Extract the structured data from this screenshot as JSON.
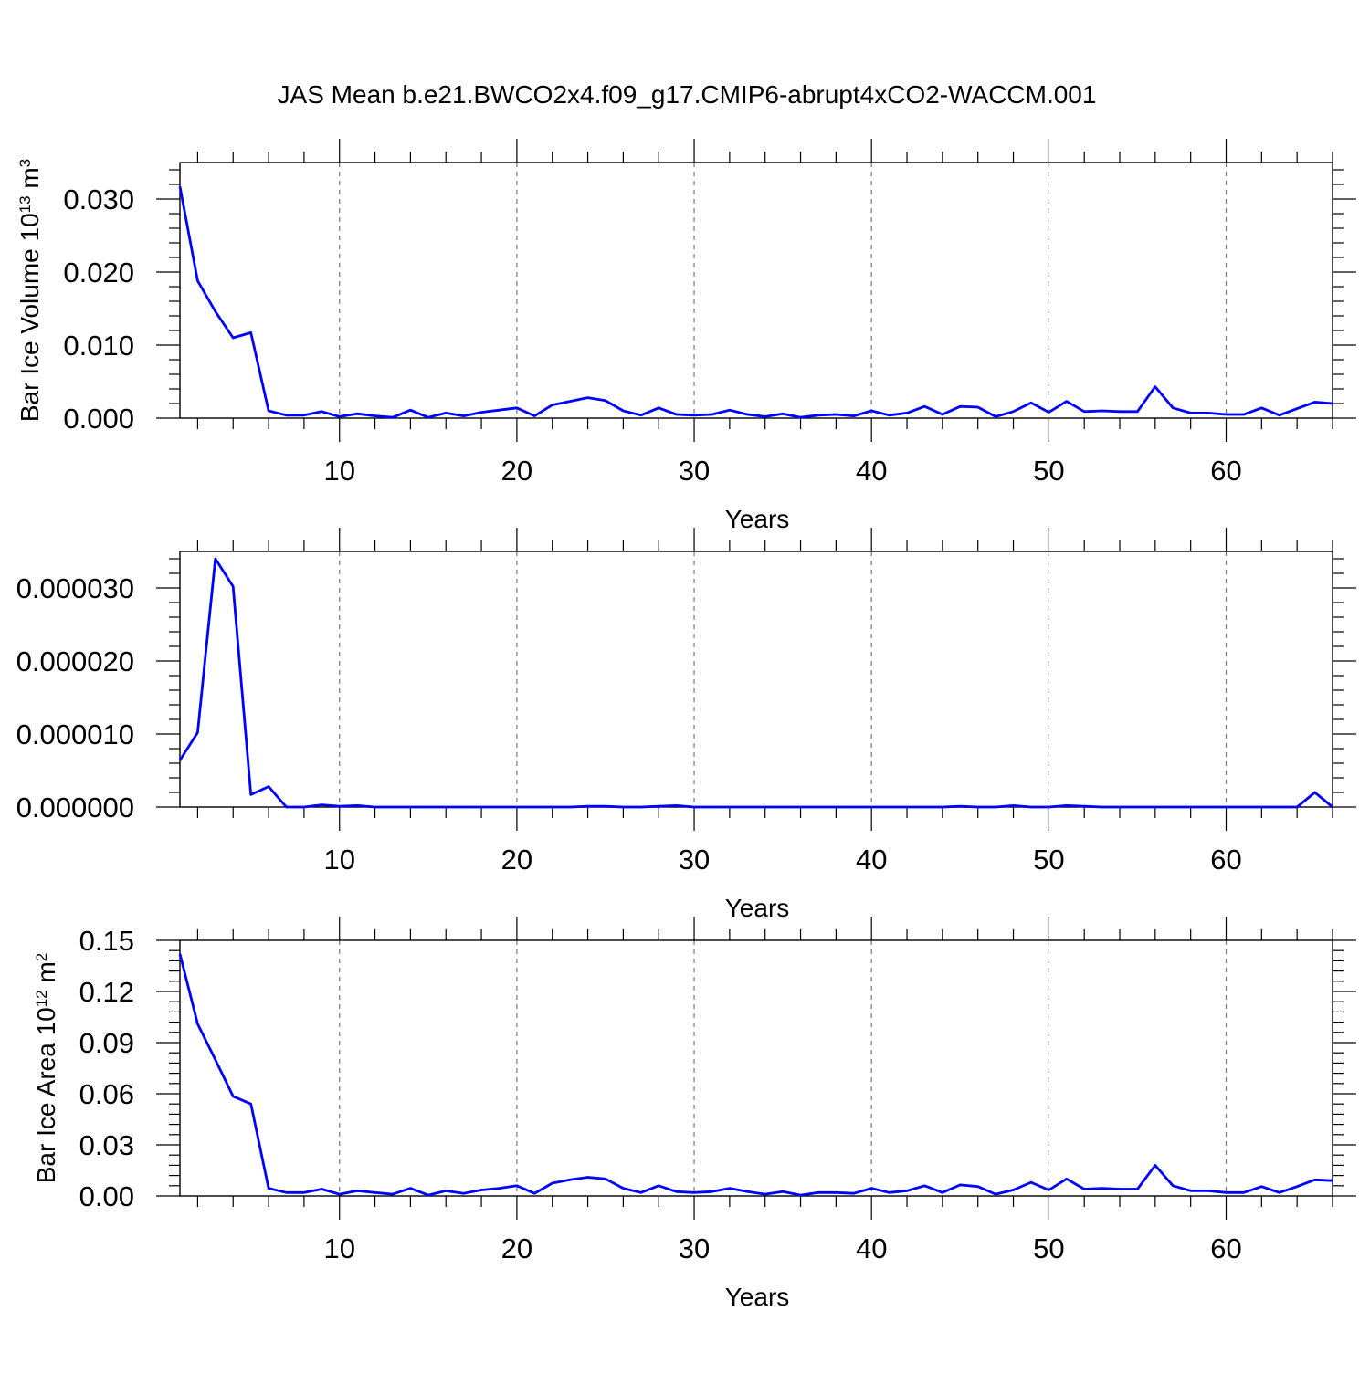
{
  "title": "JAS Mean b.e21.BWCO2x4.f09_g17.CMIP6-abrupt4xCO2-WACCM.001",
  "line_color": "#0000ff",
  "chart_data": [
    {
      "type": "line",
      "xlabel": "Years",
      "ylabel": "Bar Ice Volume 10",
      "ylabel_exp": "13",
      "ylabel_unit": " m",
      "ylabel_unit_exp": "3",
      "xlim": [
        1,
        66
      ],
      "ylim": [
        0,
        0.035
      ],
      "grid": "vertical dashed at major x ticks",
      "x_ticks": [
        10,
        20,
        30,
        40,
        50,
        60
      ],
      "x_tick_labels": [
        "10",
        "20",
        "30",
        "40",
        "50",
        "60"
      ],
      "y_ticks": [
        0,
        0.01,
        0.02,
        0.03
      ],
      "y_tick_labels": [
        "0.000",
        "0.010",
        "0.020",
        "0.030"
      ],
      "x": [
        1,
        2,
        3,
        4,
        5,
        6,
        7,
        8,
        9,
        10,
        11,
        12,
        13,
        14,
        15,
        16,
        17,
        18,
        19,
        20,
        21,
        22,
        23,
        24,
        25,
        26,
        27,
        28,
        29,
        30,
        31,
        32,
        33,
        34,
        35,
        36,
        37,
        38,
        39,
        40,
        41,
        42,
        43,
        44,
        45,
        46,
        47,
        48,
        49,
        50,
        51,
        52,
        53,
        54,
        55,
        56,
        57,
        58,
        59,
        60,
        61,
        62,
        63,
        64,
        65,
        66
      ],
      "series": [
        {
          "values": [
            0.0317,
            0.0188,
            0.0146,
            0.011,
            0.0117,
            0.001,
            0.0004,
            0.0004,
            0.0009,
            0.0002,
            0.0006,
            0.0003,
            0.0001,
            0.0011,
            0.0001,
            0.0007,
            0.0003,
            0.0008,
            0.0011,
            0.0014,
            0.0003,
            0.0018,
            0.0023,
            0.0028,
            0.0024,
            0.001,
            0.0004,
            0.0014,
            0.0005,
            0.0004,
            0.0005,
            0.0011,
            0.0005,
            0.0002,
            0.0006,
            0.0001,
            0.0004,
            0.0005,
            0.0003,
            0.001,
            0.0004,
            0.0007,
            0.0016,
            0.0005,
            0.0016,
            0.0015,
            0.0002,
            0.0009,
            0.0021,
            0.0008,
            0.0023,
            0.0009,
            0.001,
            0.0009,
            0.0009,
            0.0043,
            0.0014,
            0.0007,
            0.0007,
            0.0005,
            0.0005,
            0.0014,
            0.0004,
            0.0013,
            0.0022,
            0.002
          ]
        }
      ]
    },
    {
      "type": "line",
      "xlabel": "Years",
      "ylabel": "",
      "xlim": [
        1,
        66
      ],
      "ylim": [
        0,
        3.5e-05
      ],
      "grid": "vertical dashed at major x ticks",
      "x_ticks": [
        10,
        20,
        30,
        40,
        50,
        60
      ],
      "x_tick_labels": [
        "10",
        "20",
        "30",
        "40",
        "50",
        "60"
      ],
      "y_ticks": [
        0,
        1e-05,
        2e-05,
        3e-05
      ],
      "y_tick_labels": [
        "0.000000",
        "0.000010",
        "0.000020",
        "0.000030"
      ],
      "x": [
        1,
        2,
        3,
        4,
        5,
        6,
        7,
        8,
        9,
        10,
        11,
        12,
        13,
        14,
        15,
        16,
        17,
        18,
        19,
        20,
        21,
        22,
        23,
        24,
        25,
        26,
        27,
        28,
        29,
        30,
        31,
        32,
        33,
        34,
        35,
        36,
        37,
        38,
        39,
        40,
        41,
        42,
        43,
        44,
        45,
        46,
        47,
        48,
        49,
        50,
        51,
        52,
        53,
        54,
        55,
        56,
        57,
        58,
        59,
        60,
        61,
        62,
        63,
        64,
        65,
        66
      ],
      "series": [
        {
          "values": [
            6.4e-06,
            1.02e-05,
            3.4e-05,
            3.02e-05,
            1.7e-06,
            2.8e-06,
            0,
            0,
            3e-07,
            1e-07,
            2e-07,
            0,
            0,
            0,
            0,
            0,
            0,
            0,
            0,
            0,
            0,
            0,
            0,
            1e-07,
            1e-07,
            0,
            0,
            1e-07,
            2e-07,
            0,
            0,
            0,
            0,
            0,
            0,
            0,
            0,
            0,
            0,
            0,
            0,
            0,
            0,
            0,
            1e-07,
            0,
            0,
            2e-07,
            0,
            0,
            2e-07,
            1e-07,
            0,
            0,
            0,
            0,
            0,
            0,
            0,
            0,
            0,
            0,
            0,
            0,
            2e-06,
            0
          ]
        }
      ]
    },
    {
      "type": "line",
      "xlabel": "Years",
      "ylabel": "Bar Ice Area 10",
      "ylabel_exp": "12",
      "ylabel_unit": " m",
      "ylabel_unit_exp": "2",
      "xlim": [
        1,
        66
      ],
      "ylim": [
        0,
        0.15
      ],
      "grid": "vertical dashed at major x ticks",
      "x_ticks": [
        10,
        20,
        30,
        40,
        50,
        60
      ],
      "x_tick_labels": [
        "10",
        "20",
        "30",
        "40",
        "50",
        "60"
      ],
      "y_ticks": [
        0,
        0.03,
        0.06,
        0.09,
        0.12,
        0.15
      ],
      "y_tick_labels": [
        "0.00",
        "0.03",
        "0.06",
        "0.09",
        "0.12",
        "0.15"
      ],
      "x": [
        1,
        2,
        3,
        4,
        5,
        6,
        7,
        8,
        9,
        10,
        11,
        12,
        13,
        14,
        15,
        16,
        17,
        18,
        19,
        20,
        21,
        22,
        23,
        24,
        25,
        26,
        27,
        28,
        29,
        30,
        31,
        32,
        33,
        34,
        35,
        36,
        37,
        38,
        39,
        40,
        41,
        42,
        43,
        44,
        45,
        46,
        47,
        48,
        49,
        50,
        51,
        52,
        53,
        54,
        55,
        56,
        57,
        58,
        59,
        60,
        61,
        62,
        63,
        64,
        65,
        66
      ],
      "series": [
        {
          "values": [
            0.142,
            0.101,
            0.08,
            0.0585,
            0.054,
            0.0045,
            0.002,
            0.002,
            0.004,
            0.001,
            0.003,
            0.002,
            0.001,
            0.0045,
            0.0005,
            0.003,
            0.0015,
            0.0035,
            0.0045,
            0.006,
            0.0015,
            0.0075,
            0.0095,
            0.011,
            0.01,
            0.0045,
            0.002,
            0.006,
            0.0025,
            0.002,
            0.0025,
            0.0045,
            0.0025,
            0.001,
            0.0025,
            0.0005,
            0.002,
            0.002,
            0.0015,
            0.0045,
            0.002,
            0.003,
            0.006,
            0.002,
            0.0065,
            0.0055,
            0.001,
            0.0035,
            0.008,
            0.0035,
            0.01,
            0.004,
            0.0045,
            0.004,
            0.004,
            0.018,
            0.006,
            0.003,
            0.003,
            0.002,
            0.002,
            0.0055,
            0.002,
            0.0055,
            0.0095,
            0.009
          ]
        }
      ]
    }
  ]
}
